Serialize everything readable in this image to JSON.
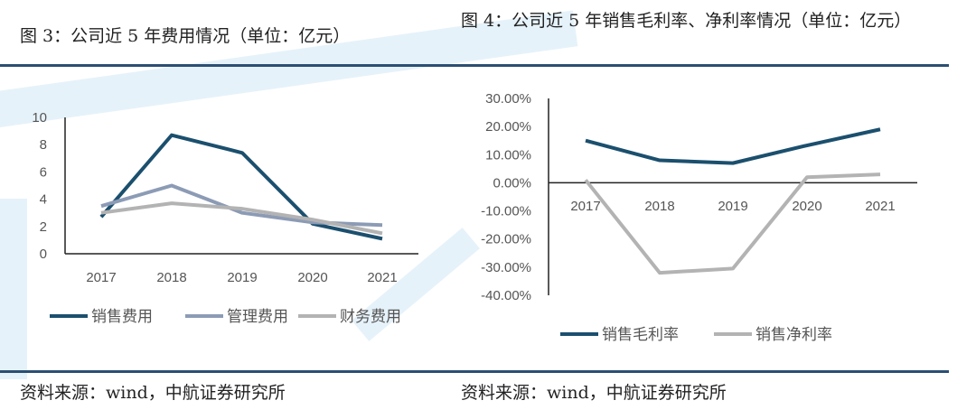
{
  "left_title": "图 3：公司近 5 年费用情况（单位：亿元）",
  "right_title": "图 4：公司近 5 年销售毛利率、净利率情况（单位：亿元）",
  "source_left": "资料来源：wind，中航证券研究所",
  "source_right": "资料来源：wind，中航证券研究所",
  "chart_data": [
    {
      "type": "line",
      "categories": [
        "2017",
        "2018",
        "2019",
        "2020",
        "2021"
      ],
      "ylim": [
        0,
        10
      ],
      "yticks": [
        0,
        2,
        4,
        6,
        8,
        10
      ],
      "legend": "bottom",
      "series": [
        {
          "name": "销售费用",
          "color": "#1b4f6e",
          "values": [
            2.7,
            8.7,
            7.4,
            2.2,
            1.1
          ]
        },
        {
          "name": "管理费用",
          "color": "#8c9bb5",
          "values": [
            3.5,
            5.0,
            3.0,
            2.3,
            2.1
          ]
        },
        {
          "name": "财务费用",
          "color": "#b3b3b3",
          "values": [
            3.0,
            3.7,
            3.3,
            2.5,
            1.5
          ]
        }
      ]
    },
    {
      "type": "line",
      "categories": [
        "2017",
        "2018",
        "2019",
        "2020",
        "2021"
      ],
      "ylim": [
        -40,
        30
      ],
      "yticks": [
        "30.00%",
        "20.00%",
        "10.00%",
        "0.00%",
        "-10.00%",
        "-20.00%",
        "-30.00%",
        "-40.00%"
      ],
      "legend": "bottom",
      "series": [
        {
          "name": "销售毛利率",
          "color": "#1b4f6e",
          "values": [
            15,
            8,
            7,
            13.3,
            19
          ]
        },
        {
          "name": "销售净利率",
          "color": "#b3b3b3",
          "values": [
            1,
            -32,
            -30.5,
            2,
            3
          ]
        }
      ]
    }
  ]
}
